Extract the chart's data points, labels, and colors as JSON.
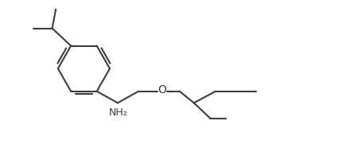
{
  "bg_color": "#ffffff",
  "line_color": "#3c3c3c",
  "line_width": 1.5,
  "text_color": "#3c3c3c",
  "nh2_label": "NH₂",
  "o_label": "O",
  "font_size": 9,
  "xlim": [
    0,
    10
  ],
  "ylim": [
    0,
    4
  ]
}
